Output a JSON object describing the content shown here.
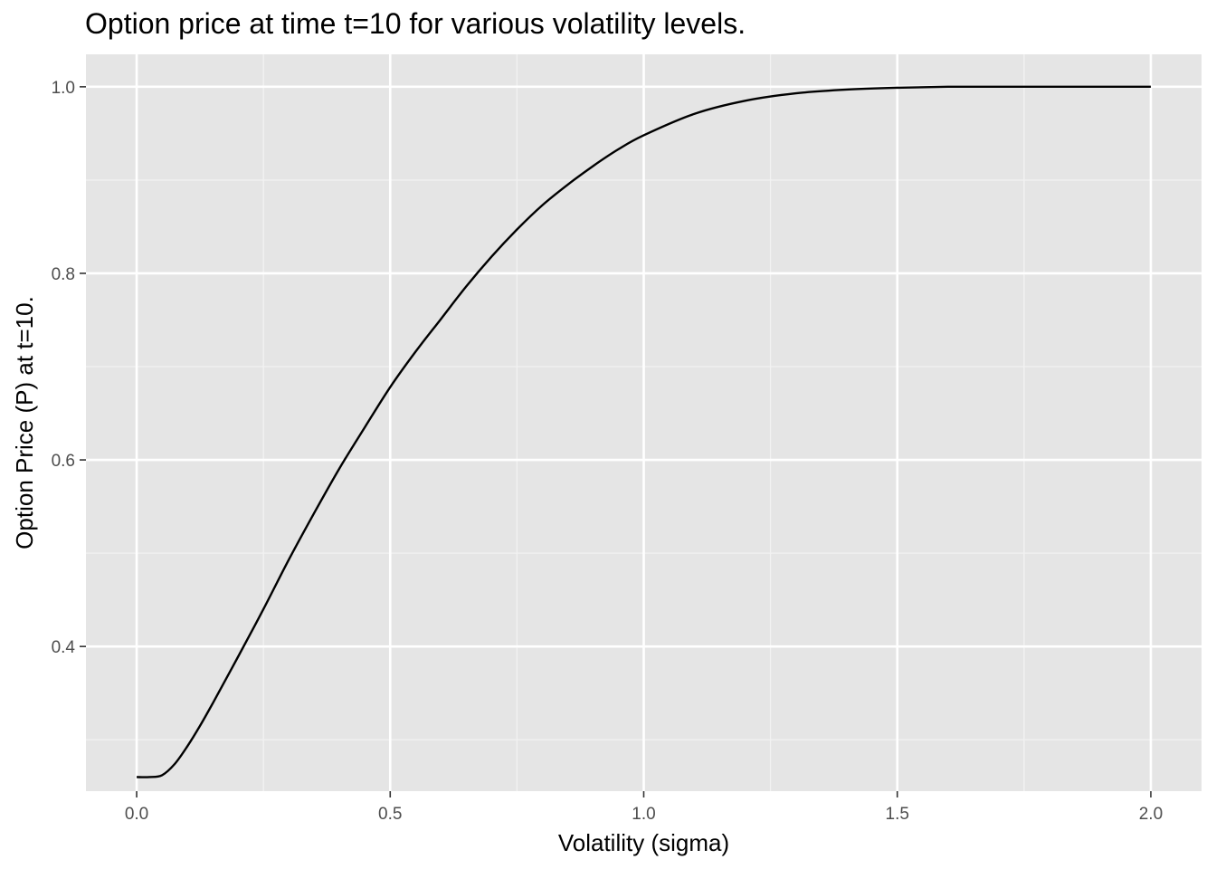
{
  "chart_data": {
    "type": "line",
    "title": "Option price at time t=10 for various volatility levels.",
    "xlabel": "Volatility (sigma)",
    "ylabel": "Option Price (P) at t=10.",
    "xlim": [
      -0.1,
      2.1
    ],
    "ylim": [
      0.2449,
      1.0348
    ],
    "x_ticks": [
      0.0,
      0.5,
      1.0,
      1.5,
      2.0
    ],
    "x_tick_labels": [
      "0.0",
      "0.5",
      "1.0",
      "1.5",
      "2.0"
    ],
    "y_ticks": [
      0.4,
      0.6,
      0.8,
      1.0
    ],
    "y_tick_labels": [
      "0.4",
      "0.6",
      "0.8",
      "1.0"
    ],
    "grid": true,
    "series": [
      {
        "color": "#000000",
        "x": [
          0.0,
          0.025,
          0.05,
          0.075,
          0.1,
          0.125,
          0.15,
          0.175,
          0.2,
          0.25,
          0.3,
          0.35,
          0.4,
          0.45,
          0.5,
          0.55,
          0.6,
          0.65,
          0.7,
          0.75,
          0.8,
          0.85,
          0.9,
          0.95,
          1.0,
          1.1,
          1.2,
          1.3,
          1.4,
          1.5,
          1.6,
          1.7,
          1.8,
          1.9,
          2.0
        ],
        "y": [
          0.26,
          0.26,
          0.262,
          0.274,
          0.293,
          0.315,
          0.339,
          0.364,
          0.389,
          0.44,
          0.493,
          0.543,
          0.591,
          0.635,
          0.678,
          0.716,
          0.751,
          0.786,
          0.818,
          0.847,
          0.873,
          0.895,
          0.915,
          0.933,
          0.948,
          0.971,
          0.985,
          0.993,
          0.997,
          0.999,
          1.0,
          1.0,
          1.0,
          1.0,
          1.0
        ]
      }
    ]
  }
}
